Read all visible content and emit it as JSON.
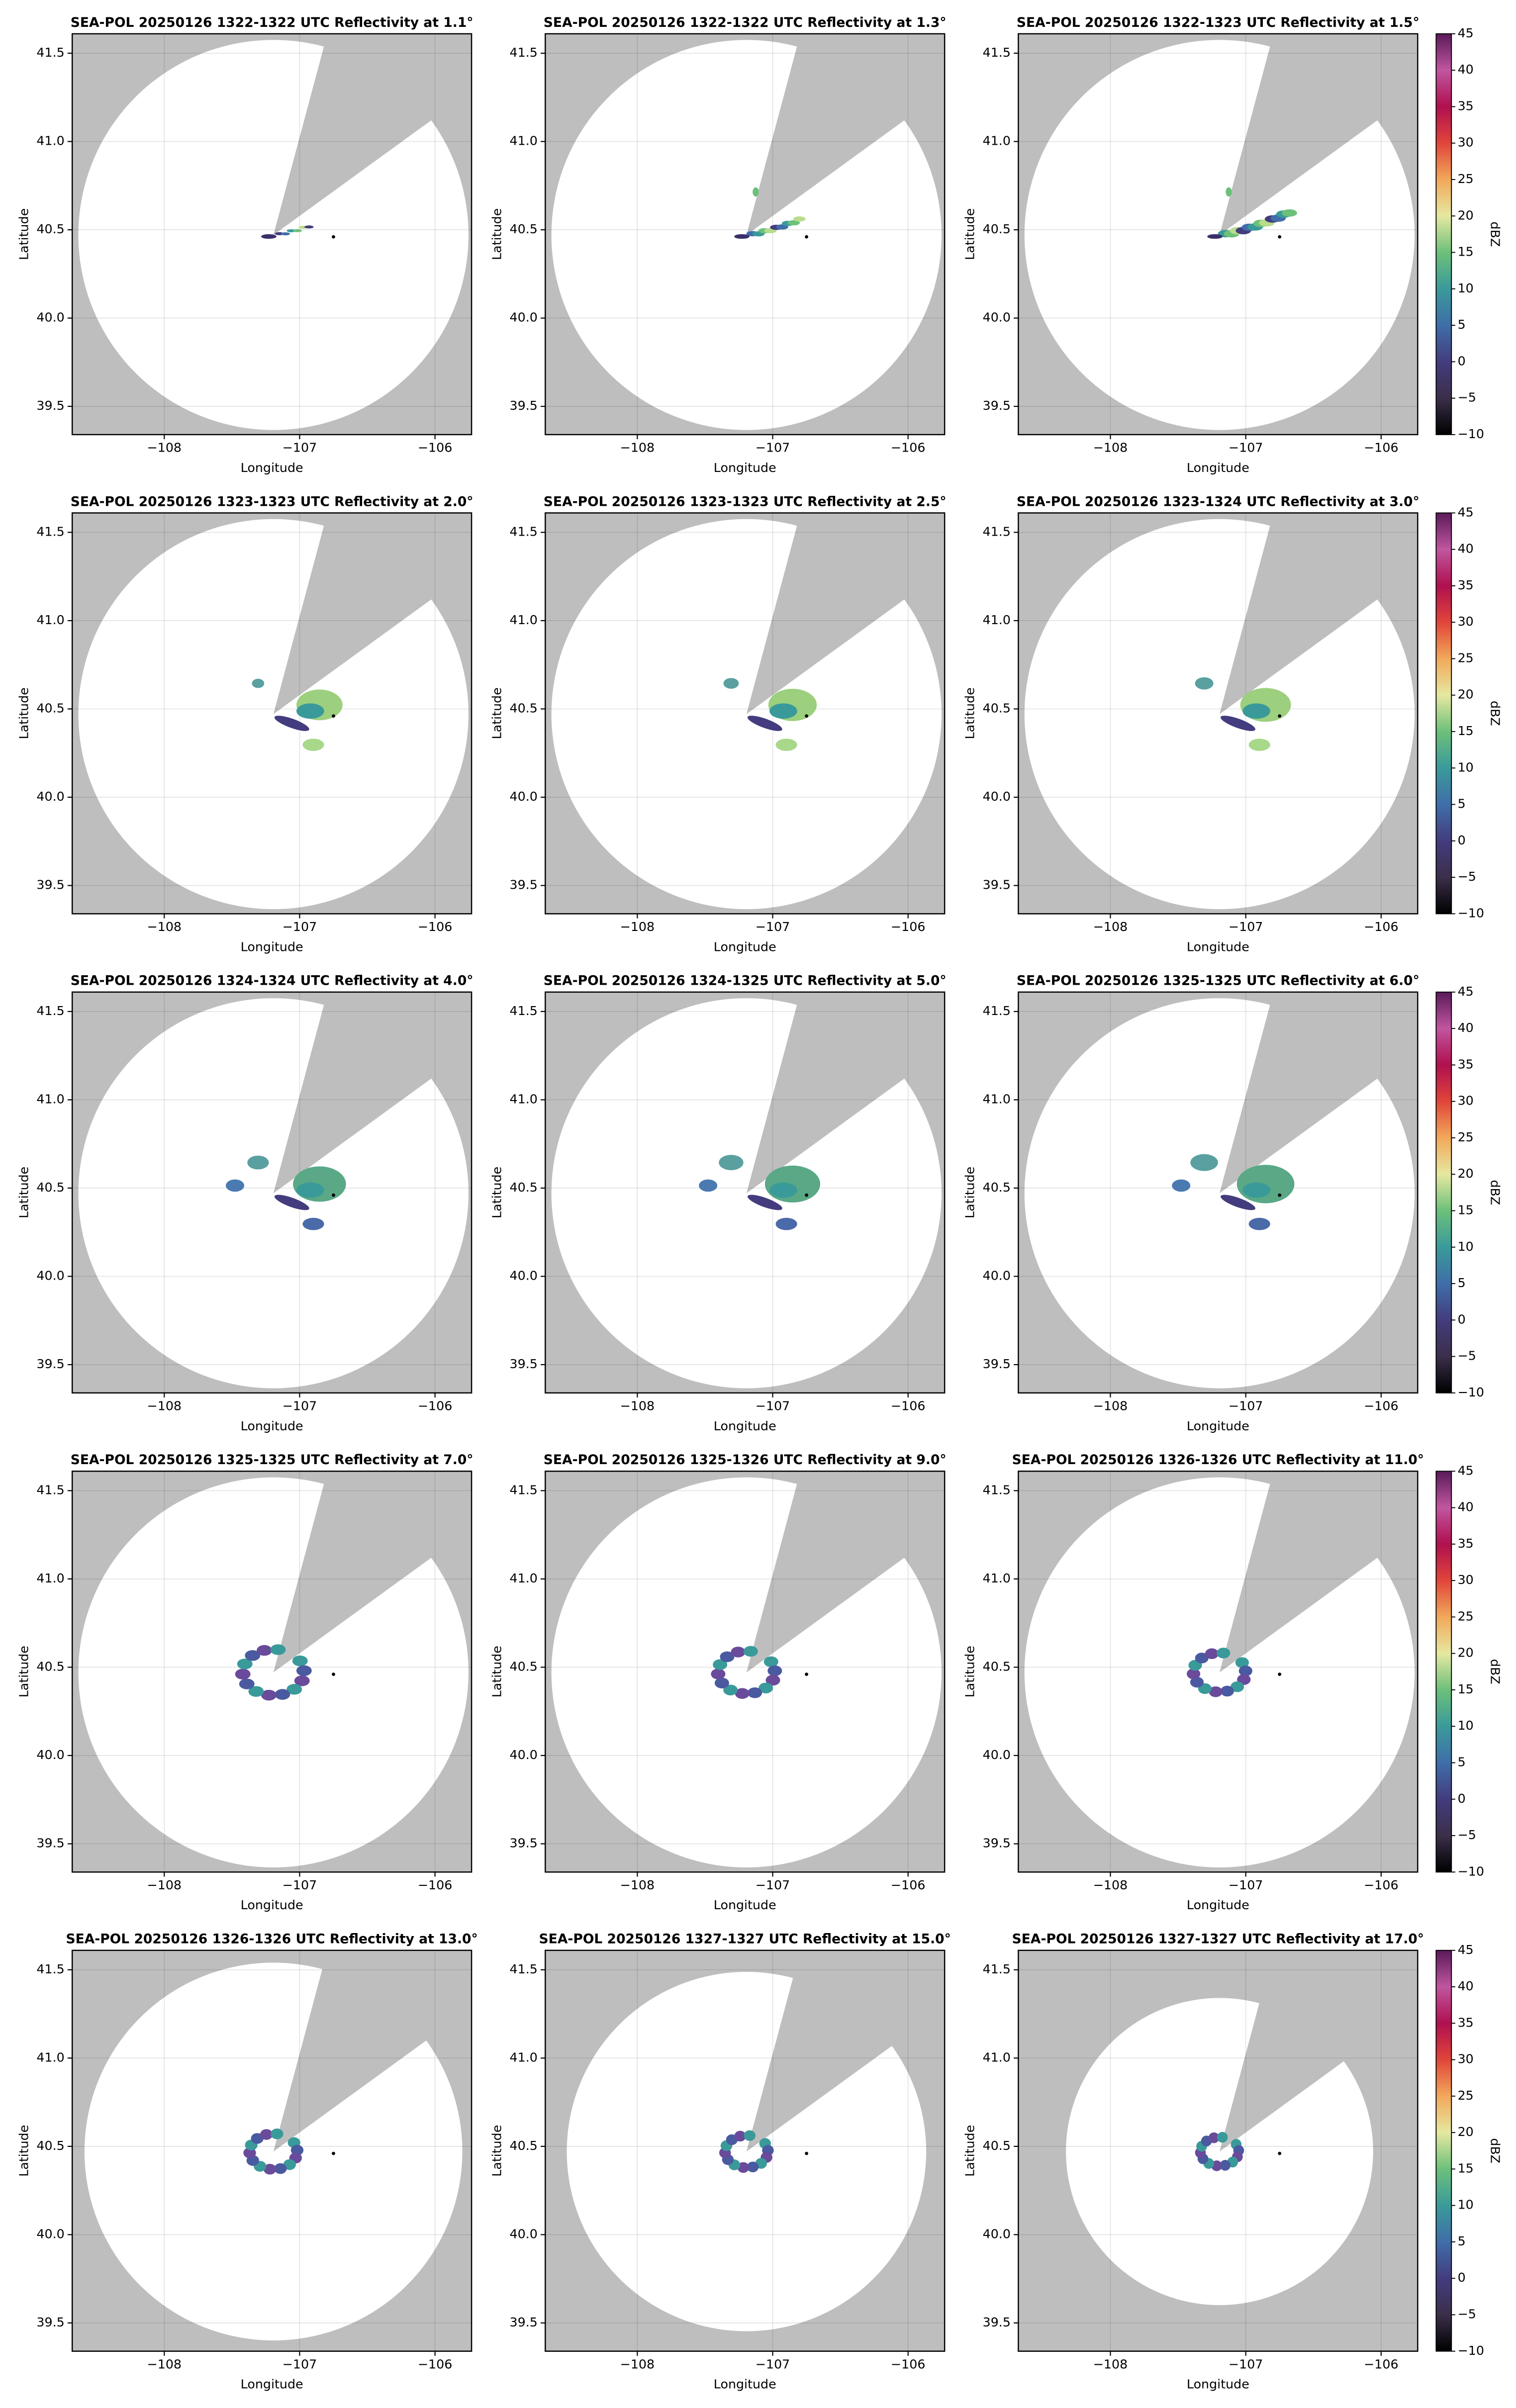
{
  "chart_data": [
    {
      "type": "radar",
      "title": "SEA-POL 20250126 1322-1322 UTC Reflectivity at 1.1°",
      "xlabel": "Longitude",
      "ylabel": "Latitude",
      "xlim": [
        -108.68,
        -105.73
      ],
      "ylim": [
        39.34,
        41.61
      ],
      "xticks": [
        {
          "value": -108,
          "label": "−108"
        },
        {
          "value": -107,
          "label": "−107"
        },
        {
          "value": -106,
          "label": "−106"
        }
      ],
      "yticks": [
        39.5,
        {
          "value": 40,
          "label": "40.0"
        },
        40.5,
        {
          "value": 41,
          "label": "41.0"
        },
        41.5
      ],
      "grid": true,
      "background": "#bebebe",
      "site": {
        "x": -106.75,
        "y": 40.46
      }
    },
    {
      "type": "radar",
      "title": "SEA-POL 20250126 1322-1322 UTC Reflectivity at 1.3°",
      "xlabel": "Longitude",
      "ylabel": "Latitude",
      "xlim": [
        -108.68,
        -105.73
      ],
      "ylim": [
        39.34,
        41.61
      ],
      "xticks": [
        {
          "value": -108,
          "label": "−108"
        },
        {
          "value": -107,
          "label": "−107"
        },
        {
          "value": -106,
          "label": "−106"
        }
      ],
      "yticks": [
        39.5,
        {
          "value": 40,
          "label": "40.0"
        },
        40.5,
        {
          "value": 41,
          "label": "41.0"
        },
        41.5
      ],
      "grid": true,
      "background": "#bebebe",
      "site": {
        "x": -106.75,
        "y": 40.46
      }
    },
    {
      "type": "radar",
      "title": "SEA-POL 20250126 1322-1323 UTC Reflectivity at 1.5°",
      "xlabel": "Longitude",
      "ylabel": "Latitude",
      "xlim": [
        -108.68,
        -105.73
      ],
      "ylim": [
        39.34,
        41.61
      ],
      "xticks": [
        {
          "value": -108,
          "label": "−108"
        },
        {
          "value": -107,
          "label": "−107"
        },
        {
          "value": -106,
          "label": "−106"
        }
      ],
      "yticks": [
        39.5,
        {
          "value": 40,
          "label": "40.0"
        },
        40.5,
        {
          "value": 41,
          "label": "41.0"
        },
        41.5
      ],
      "grid": true,
      "background": "#bebebe",
      "site": {
        "x": -106.75,
        "y": 40.46
      },
      "colorbar": {
        "label": "dBZ",
        "lim": [
          -10,
          45
        ],
        "ticks": [
          {
            "value": -10,
            "label": "−10"
          },
          {
            "value": -5,
            "label": "−5"
          },
          0,
          5,
          10,
          15,
          20,
          25,
          30,
          35,
          40,
          45
        ],
        "colors": [
          "#000000",
          "#3b2f4a",
          "#433c7e",
          "#3f6ea8",
          "#3a9a9a",
          "#6cc07a",
          "#e6e8a0",
          "#f2a85a",
          "#e0453a",
          "#b0104f",
          "#c0569f",
          "#5a1a5a"
        ]
      }
    },
    {
      "type": "radar",
      "title": "SEA-POL 20250126 1323-1323 UTC Reflectivity at 2.0°",
      "xlabel": "Longitude",
      "ylabel": "Latitude",
      "xlim": [
        -108.68,
        -105.73
      ],
      "ylim": [
        39.34,
        41.61
      ],
      "xticks": [
        {
          "value": -108,
          "label": "−108"
        },
        {
          "value": -107,
          "label": "−107"
        },
        {
          "value": -106,
          "label": "−106"
        }
      ],
      "yticks": [
        39.5,
        {
          "value": 40,
          "label": "40.0"
        },
        40.5,
        {
          "value": 41,
          "label": "41.0"
        },
        41.5
      ],
      "grid": true,
      "background": "#bebebe",
      "site": {
        "x": -106.75,
        "y": 40.46
      }
    },
    {
      "type": "radar",
      "title": "SEA-POL 20250126 1323-1323 UTC Reflectivity at 2.5°",
      "xlabel": "Longitude",
      "ylabel": "Latitude",
      "xlim": [
        -108.68,
        -105.73
      ],
      "ylim": [
        39.34,
        41.61
      ],
      "xticks": [
        {
          "value": -108,
          "label": "−108"
        },
        {
          "value": -107,
          "label": "−107"
        },
        {
          "value": -106,
          "label": "−106"
        }
      ],
      "yticks": [
        39.5,
        {
          "value": 40,
          "label": "40.0"
        },
        40.5,
        {
          "value": 41,
          "label": "41.0"
        },
        41.5
      ],
      "grid": true,
      "background": "#bebebe",
      "site": {
        "x": -106.75,
        "y": 40.46
      }
    },
    {
      "type": "radar",
      "title": "SEA-POL 20250126 1323-1324 UTC Reflectivity at 3.0°",
      "xlabel": "Longitude",
      "ylabel": "Latitude",
      "xlim": [
        -108.68,
        -105.73
      ],
      "ylim": [
        39.34,
        41.61
      ],
      "xticks": [
        {
          "value": -108,
          "label": "−108"
        },
        {
          "value": -107,
          "label": "−107"
        },
        {
          "value": -106,
          "label": "−106"
        }
      ],
      "yticks": [
        39.5,
        {
          "value": 40,
          "label": "40.0"
        },
        40.5,
        {
          "value": 41,
          "label": "41.0"
        },
        41.5
      ],
      "grid": true,
      "background": "#bebebe",
      "site": {
        "x": -106.75,
        "y": 40.46
      },
      "colorbar": {
        "label": "dBZ",
        "lim": [
          -10,
          45
        ],
        "ticks": [
          {
            "value": -10,
            "label": "−10"
          },
          {
            "value": -5,
            "label": "−5"
          },
          0,
          5,
          10,
          15,
          20,
          25,
          30,
          35,
          40,
          45
        ],
        "colors": [
          "#000000",
          "#3b2f4a",
          "#433c7e",
          "#3f6ea8",
          "#3a9a9a",
          "#6cc07a",
          "#e6e8a0",
          "#f2a85a",
          "#e0453a",
          "#b0104f",
          "#c0569f",
          "#5a1a5a"
        ]
      }
    },
    {
      "type": "radar",
      "title": "SEA-POL 20250126 1324-1324 UTC Reflectivity at 4.0°",
      "xlabel": "Longitude",
      "ylabel": "Latitude",
      "xlim": [
        -108.68,
        -105.73
      ],
      "ylim": [
        39.34,
        41.61
      ],
      "xticks": [
        {
          "value": -108,
          "label": "−108"
        },
        {
          "value": -107,
          "label": "−107"
        },
        {
          "value": -106,
          "label": "−106"
        }
      ],
      "yticks": [
        39.5,
        {
          "value": 40,
          "label": "40.0"
        },
        40.5,
        {
          "value": 41,
          "label": "41.0"
        },
        41.5
      ],
      "grid": true,
      "background": "#bebebe",
      "site": {
        "x": -106.75,
        "y": 40.46
      }
    },
    {
      "type": "radar",
      "title": "SEA-POL 20250126 1324-1325 UTC Reflectivity at 5.0°",
      "xlabel": "Longitude",
      "ylabel": "Latitude",
      "xlim": [
        -108.68,
        -105.73
      ],
      "ylim": [
        39.34,
        41.61
      ],
      "xticks": [
        {
          "value": -108,
          "label": "−108"
        },
        {
          "value": -107,
          "label": "−107"
        },
        {
          "value": -106,
          "label": "−106"
        }
      ],
      "yticks": [
        39.5,
        {
          "value": 40,
          "label": "40.0"
        },
        40.5,
        {
          "value": 41,
          "label": "41.0"
        },
        41.5
      ],
      "grid": true,
      "background": "#bebebe",
      "site": {
        "x": -106.75,
        "y": 40.46
      }
    },
    {
      "type": "radar",
      "title": "SEA-POL 20250126 1325-1325 UTC Reflectivity at 6.0°",
      "xlabel": "Longitude",
      "ylabel": "Latitude",
      "xlim": [
        -108.68,
        -105.73
      ],
      "ylim": [
        39.34,
        41.61
      ],
      "xticks": [
        {
          "value": -108,
          "label": "−108"
        },
        {
          "value": -107,
          "label": "−107"
        },
        {
          "value": -106,
          "label": "−106"
        }
      ],
      "yticks": [
        39.5,
        {
          "value": 40,
          "label": "40.0"
        },
        40.5,
        {
          "value": 41,
          "label": "41.0"
        },
        41.5
      ],
      "grid": true,
      "background": "#bebebe",
      "site": {
        "x": -106.75,
        "y": 40.46
      },
      "colorbar": {
        "label": "dBZ",
        "lim": [
          -10,
          45
        ],
        "ticks": [
          {
            "value": -10,
            "label": "−10"
          },
          {
            "value": -5,
            "label": "−5"
          },
          0,
          5,
          10,
          15,
          20,
          25,
          30,
          35,
          40,
          45
        ],
        "colors": [
          "#000000",
          "#3b2f4a",
          "#433c7e",
          "#3f6ea8",
          "#3a9a9a",
          "#6cc07a",
          "#e6e8a0",
          "#f2a85a",
          "#e0453a",
          "#b0104f",
          "#c0569f",
          "#5a1a5a"
        ]
      }
    },
    {
      "type": "radar",
      "title": "SEA-POL 20250126 1325-1325 UTC Reflectivity at 7.0°",
      "xlabel": "Longitude",
      "ylabel": "Latitude",
      "xlim": [
        -108.68,
        -105.73
      ],
      "ylim": [
        39.34,
        41.61
      ],
      "xticks": [
        {
          "value": -108,
          "label": "−108"
        },
        {
          "value": -107,
          "label": "−107"
        },
        {
          "value": -106,
          "label": "−106"
        }
      ],
      "yticks": [
        39.5,
        {
          "value": 40,
          "label": "40.0"
        },
        40.5,
        {
          "value": 41,
          "label": "41.0"
        },
        41.5
      ],
      "grid": true,
      "background": "#bebebe",
      "site": {
        "x": -106.75,
        "y": 40.46
      }
    },
    {
      "type": "radar",
      "title": "SEA-POL 20250126 1325-1326 UTC Reflectivity at 9.0°",
      "xlabel": "Longitude",
      "ylabel": "Latitude",
      "xlim": [
        -108.68,
        -105.73
      ],
      "ylim": [
        39.34,
        41.61
      ],
      "xticks": [
        {
          "value": -108,
          "label": "−108"
        },
        {
          "value": -107,
          "label": "−107"
        },
        {
          "value": -106,
          "label": "−106"
        }
      ],
      "yticks": [
        39.5,
        {
          "value": 40,
          "label": "40.0"
        },
        40.5,
        {
          "value": 41,
          "label": "41.0"
        },
        41.5
      ],
      "grid": true,
      "background": "#bebebe",
      "site": {
        "x": -106.75,
        "y": 40.46
      }
    },
    {
      "type": "radar",
      "title": "SEA-POL 20250126 1326-1326 UTC Reflectivity at 11.0°",
      "xlabel": "Longitude",
      "ylabel": "Latitude",
      "xlim": [
        -108.68,
        -105.73
      ],
      "ylim": [
        39.34,
        41.61
      ],
      "xticks": [
        {
          "value": -108,
          "label": "−108"
        },
        {
          "value": -107,
          "label": "−107"
        },
        {
          "value": -106,
          "label": "−106"
        }
      ],
      "yticks": [
        39.5,
        {
          "value": 40,
          "label": "40.0"
        },
        40.5,
        {
          "value": 41,
          "label": "41.0"
        },
        41.5
      ],
      "grid": true,
      "background": "#bebebe",
      "site": {
        "x": -106.75,
        "y": 40.46
      },
      "colorbar": {
        "label": "dBZ",
        "lim": [
          -10,
          45
        ],
        "ticks": [
          {
            "value": -10,
            "label": "−10"
          },
          {
            "value": -5,
            "label": "−5"
          },
          0,
          5,
          10,
          15,
          20,
          25,
          30,
          35,
          40,
          45
        ],
        "colors": [
          "#000000",
          "#3b2f4a",
          "#433c7e",
          "#3f6ea8",
          "#3a9a9a",
          "#6cc07a",
          "#e6e8a0",
          "#f2a85a",
          "#e0453a",
          "#b0104f",
          "#c0569f",
          "#5a1a5a"
        ]
      }
    },
    {
      "type": "radar",
      "title": "SEA-POL 20250126 1326-1326 UTC Reflectivity at 13.0°",
      "xlabel": "Longitude",
      "ylabel": "Latitude",
      "xlim": [
        -108.68,
        -105.73
      ],
      "ylim": [
        39.34,
        41.61
      ],
      "xticks": [
        {
          "value": -108,
          "label": "−108"
        },
        {
          "value": -107,
          "label": "−107"
        },
        {
          "value": -106,
          "label": "−106"
        }
      ],
      "yticks": [
        39.5,
        {
          "value": 40,
          "label": "40.0"
        },
        40.5,
        {
          "value": 41,
          "label": "41.0"
        },
        41.5
      ],
      "grid": true,
      "background": "#bebebe",
      "site": {
        "x": -106.75,
        "y": 40.46
      }
    },
    {
      "type": "radar",
      "title": "SEA-POL 20250126 1327-1327 UTC Reflectivity at 15.0°",
      "xlabel": "Longitude",
      "ylabel": "Latitude",
      "xlim": [
        -108.68,
        -105.73
      ],
      "ylim": [
        39.34,
        41.61
      ],
      "xticks": [
        {
          "value": -108,
          "label": "−108"
        },
        {
          "value": -107,
          "label": "−107"
        },
        {
          "value": -106,
          "label": "−106"
        }
      ],
      "yticks": [
        39.5,
        {
          "value": 40,
          "label": "40.0"
        },
        40.5,
        {
          "value": 41,
          "label": "41.0"
        },
        41.5
      ],
      "grid": true,
      "background": "#bebebe",
      "site": {
        "x": -106.75,
        "y": 40.46
      }
    },
    {
      "type": "radar",
      "title": "SEA-POL 20250126 1327-1327 UTC Reflectivity at 17.0°",
      "xlabel": "Longitude",
      "ylabel": "Latitude",
      "xlim": [
        -108.68,
        -105.73
      ],
      "ylim": [
        39.34,
        41.61
      ],
      "xticks": [
        {
          "value": -108,
          "label": "−108"
        },
        {
          "value": -107,
          "label": "−107"
        },
        {
          "value": -106,
          "label": "−106"
        }
      ],
      "yticks": [
        39.5,
        {
          "value": 40,
          "label": "40.0"
        },
        40.5,
        {
          "value": 41,
          "label": "41.0"
        },
        41.5
      ],
      "grid": true,
      "background": "#bebebe",
      "site": {
        "x": -106.75,
        "y": 40.46
      },
      "colorbar": {
        "label": "dBZ",
        "lim": [
          -10,
          45
        ],
        "ticks": [
          {
            "value": -10,
            "label": "−10"
          },
          {
            "value": -5,
            "label": "−5"
          },
          0,
          5,
          10,
          15,
          20,
          25,
          30,
          35,
          40,
          45
        ],
        "colors": [
          "#000000",
          "#3b2f4a",
          "#433c7e",
          "#3f6ea8",
          "#3a9a9a",
          "#6cc07a",
          "#e6e8a0",
          "#f2a85a",
          "#e0453a",
          "#b0104f",
          "#c0569f",
          "#5a1a5a"
        ]
      }
    }
  ]
}
